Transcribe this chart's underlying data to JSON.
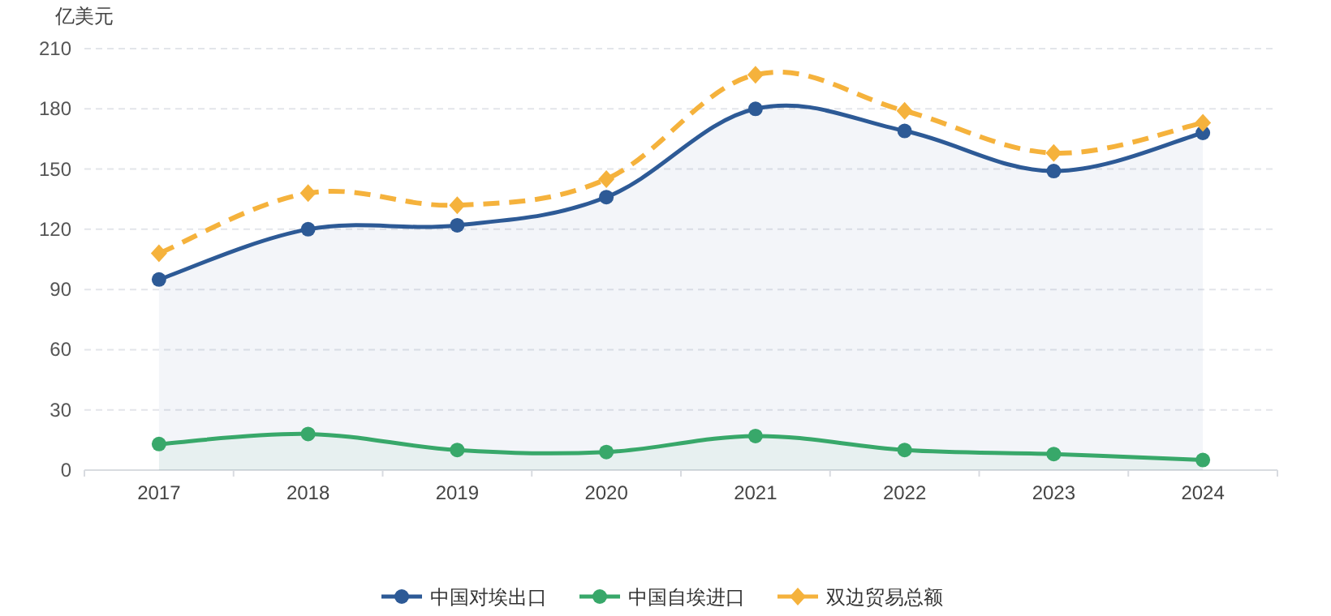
{
  "chart_data": {
    "type": "line",
    "ylabel": "亿美元",
    "categories": [
      "2017",
      "2018",
      "2019",
      "2020",
      "2021",
      "2022",
      "2023",
      "2024"
    ],
    "series": [
      {
        "name": "中国对埃出口",
        "type": "area",
        "color": "#2d5a96",
        "marker": "circle",
        "line_style": "solid",
        "values": [
          95,
          120,
          122,
          136,
          180,
          169,
          149,
          168
        ]
      },
      {
        "name": "中国自埃进口",
        "type": "area",
        "color": "#38a86a",
        "marker": "circle",
        "line_style": "solid",
        "values": [
          13,
          18,
          10,
          9,
          17,
          10,
          8,
          5
        ]
      },
      {
        "name": "双边贸易总额",
        "type": "line",
        "color": "#f5b23c",
        "marker": "diamond",
        "line_style": "dashed",
        "values": [
          108,
          138,
          132,
          145,
          197,
          179,
          158,
          173
        ]
      }
    ],
    "ylim": [
      0,
      210
    ],
    "yticks": [
      0,
      30,
      60,
      90,
      120,
      150,
      180,
      210
    ],
    "grid": "y",
    "legend": "bottom"
  }
}
